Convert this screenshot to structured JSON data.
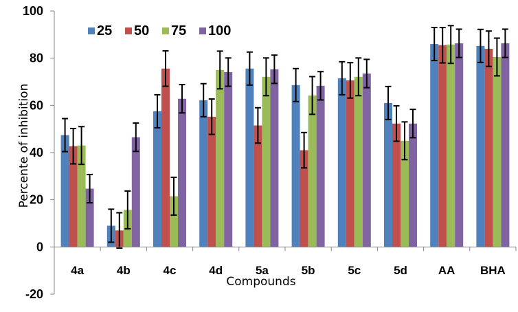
{
  "chart_data": {
    "type": "bar",
    "title": "",
    "xlabel": "Compounds",
    "ylabel": "Percente of inhibition",
    "ylim": [
      -20,
      100
    ],
    "yticks": [
      -20,
      0,
      20,
      40,
      60,
      80,
      100
    ],
    "grid": false,
    "legend_position": "top-left",
    "categories": [
      "4a",
      "4b",
      "4c",
      "4d",
      "5a",
      "5b",
      "5c",
      "5d",
      "AA",
      "BHA"
    ],
    "series": [
      {
        "name": "25",
        "color": "#4F81BD",
        "values": [
          47.4,
          9.0,
          57.5,
          62.2,
          75.6,
          68.6,
          71.5,
          61.0,
          86.0,
          85.2
        ],
        "errors": [
          7.0,
          7.0,
          7.0,
          7.0,
          7.0,
          7.0,
          7.0,
          7.0,
          7.0,
          7.0
        ]
      },
      {
        "name": "50",
        "color": "#C0504D",
        "values": [
          42.7,
          7.0,
          75.6,
          55.2,
          51.5,
          41.0,
          70.6,
          52.3,
          85.5,
          84.0
        ],
        "errors": [
          7.5,
          7.5,
          7.5,
          7.5,
          7.5,
          7.5,
          7.5,
          7.5,
          7.5,
          7.5
        ]
      },
      {
        "name": "75",
        "color": "#9BBB59",
        "values": [
          43.0,
          15.7,
          21.5,
          75.0,
          72.1,
          64.2,
          72.1,
          45.0,
          85.8,
          80.5
        ],
        "errors": [
          8.0,
          8.0,
          8.0,
          8.0,
          8.0,
          8.0,
          8.0,
          8.0,
          8.0,
          8.0
        ]
      },
      {
        "name": "100",
        "color": "#8064A2",
        "values": [
          24.7,
          46.5,
          62.8,
          74.1,
          75.3,
          68.3,
          73.5,
          52.3,
          86.3,
          86.3
        ],
        "errors": [
          6.0,
          6.0,
          6.0,
          6.0,
          6.0,
          6.0,
          6.0,
          6.0,
          6.0,
          6.0
        ]
      }
    ]
  }
}
